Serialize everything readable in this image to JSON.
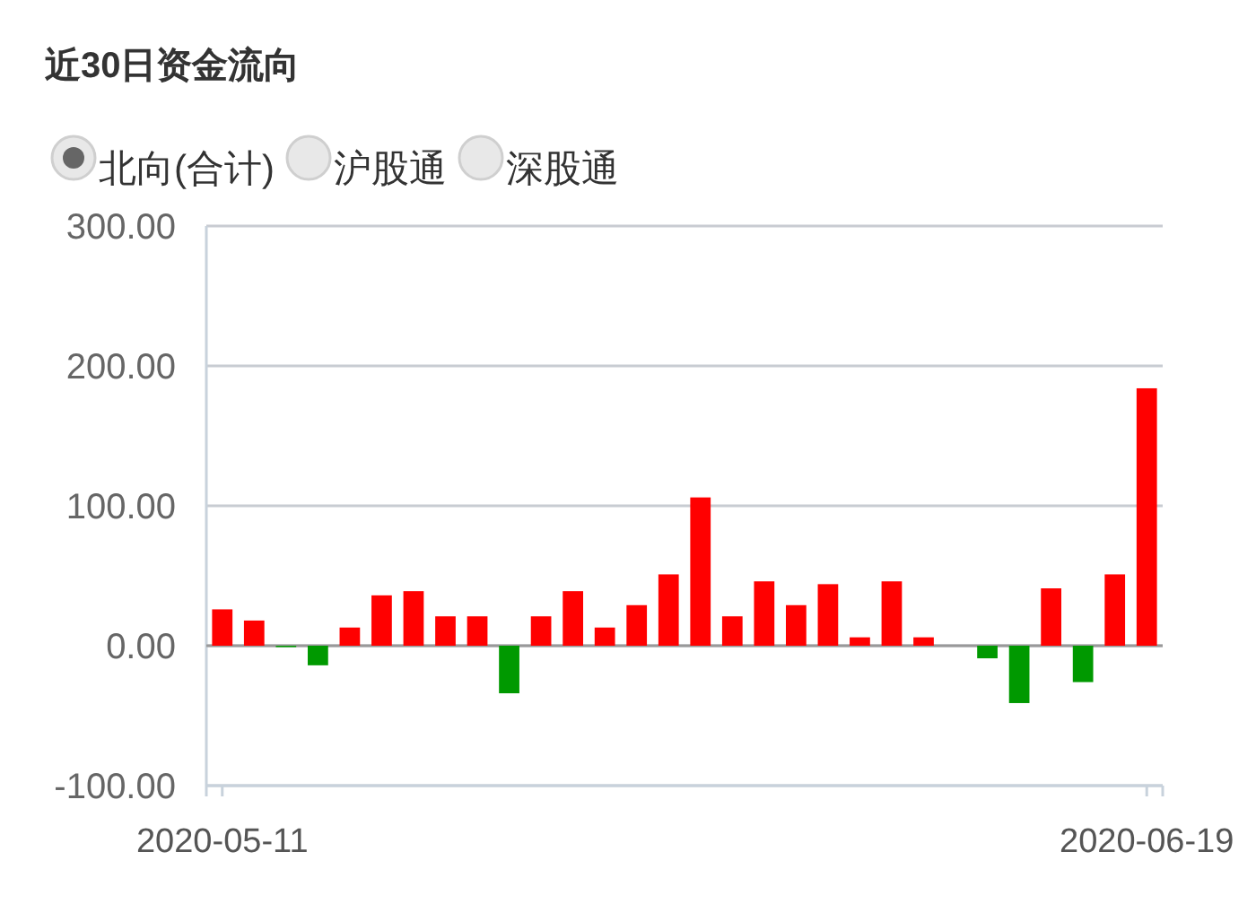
{
  "chart_data": {
    "type": "bar",
    "title": "近30日资金流向",
    "annotations": [
      "北向(合计)",
      "沪股通",
      "深股通"
    ],
    "categories": [
      "2020-05-11",
      null,
      null,
      null,
      null,
      null,
      null,
      null,
      null,
      null,
      null,
      null,
      null,
      null,
      null,
      null,
      null,
      null,
      null,
      null,
      null,
      null,
      null,
      null,
      null,
      null,
      null,
      null,
      null,
      "2020-06-19"
    ],
    "values": [
      26,
      18,
      -1,
      -14,
      13,
      36,
      39,
      21,
      21,
      -34,
      21,
      39,
      13,
      29,
      51,
      106,
      21,
      46,
      29,
      44,
      6,
      46,
      6,
      null,
      -9,
      -41,
      41,
      -26,
      51,
      184
    ],
    "colors": [
      "#ff0000",
      "#ff0000",
      "#009900",
      "#009900",
      "#ff0000",
      "#ff0000",
      "#ff0000",
      "#ff0000",
      "#ff0000",
      "#009900",
      "#ff0000",
      "#ff0000",
      "#ff0000",
      "#ff0000",
      "#ff0000",
      "#ff0000",
      "#ff0000",
      "#ff0000",
      "#ff0000",
      "#ff0000",
      "#ff0000",
      "#ff0000",
      "#ff0000",
      null,
      "#009900",
      "#009900",
      "#ff0000",
      "#009900",
      "#ff0000",
      "#ff0000"
    ],
    "ylim": [
      -100,
      300
    ],
    "yticks": [
      {
        "value": -100,
        "label": "-100.00"
      },
      {
        "value": 0,
        "label": "0.00"
      },
      {
        "value": 100,
        "label": "100.00"
      },
      {
        "value": 200,
        "label": "200.00"
      },
      {
        "value": 300,
        "label": "300.00"
      }
    ],
    "grid": "y"
  }
}
